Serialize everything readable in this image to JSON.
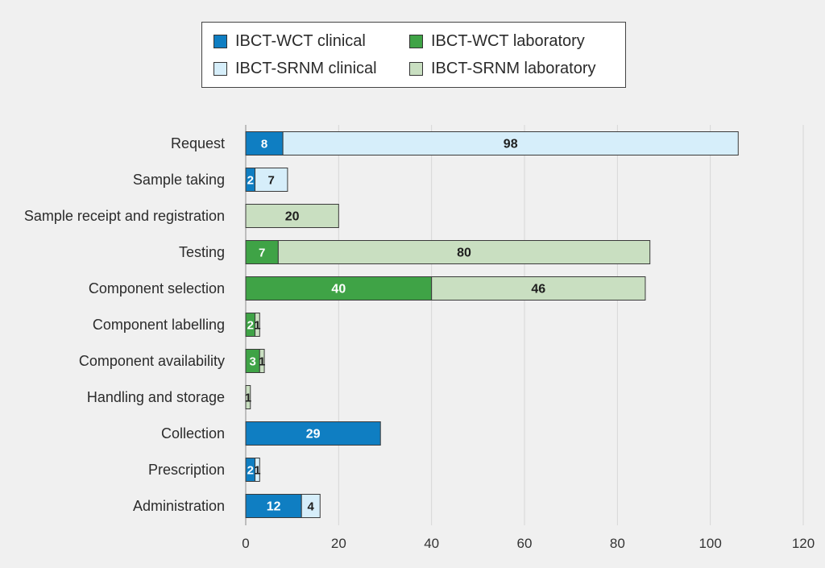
{
  "colors": {
    "wct_clinical": "#0f7ec2",
    "wct_laboratory": "#3fa346",
    "srnm_clinical": "#d6eefa",
    "srnm_laboratory": "#c9dfc1",
    "background": "#f0f0f0",
    "gridline": "#d6d6d6",
    "bar_outline": "#3a3a3a",
    "label_light": "#ffffff",
    "label_dark": "#1e1e1e"
  },
  "chart_data": {
    "type": "bar",
    "orientation": "horizontal",
    "stacked": true,
    "title": "",
    "xlabel": "",
    "ylabel": "",
    "xlim": [
      0,
      120
    ],
    "xticks": [
      0,
      20,
      40,
      60,
      80,
      100,
      120
    ],
    "grid": "vertical",
    "legend_position": "top-center",
    "categories": [
      "Request",
      "Sample taking",
      "Sample receipt and registration",
      "Testing",
      "Component selection",
      "Component labelling",
      "Component availability",
      "Handling and storage",
      "Collection",
      "Prescription",
      "Administration"
    ],
    "series": [
      {
        "name": "IBCT-WCT clinical",
        "key": "wct_clinical",
        "values": [
          8,
          2,
          0,
          0,
          0,
          0,
          0,
          0,
          29,
          2,
          12
        ]
      },
      {
        "name": "IBCT-SRNM clinical",
        "key": "srnm_clinical",
        "values": [
          98,
          7,
          0,
          0,
          0,
          0,
          0,
          0,
          0,
          1,
          4
        ]
      },
      {
        "name": "IBCT-WCT laboratory",
        "key": "wct_laboratory",
        "values": [
          0,
          0,
          0,
          7,
          40,
          2,
          3,
          0,
          0,
          0,
          0
        ]
      },
      {
        "name": "IBCT-SRNM laboratory",
        "key": "srnm_laboratory",
        "values": [
          0,
          0,
          20,
          80,
          46,
          1,
          1,
          1,
          0,
          0,
          0
        ]
      }
    ]
  },
  "legend": {
    "items": [
      {
        "label": "IBCT-WCT clinical",
        "key": "wct_clinical"
      },
      {
        "label": "IBCT-WCT laboratory",
        "key": "wct_laboratory"
      },
      {
        "label": "IBCT-SRNM clinical",
        "key": "srnm_clinical"
      },
      {
        "label": "IBCT-SRNM laboratory",
        "key": "srnm_laboratory"
      }
    ]
  }
}
